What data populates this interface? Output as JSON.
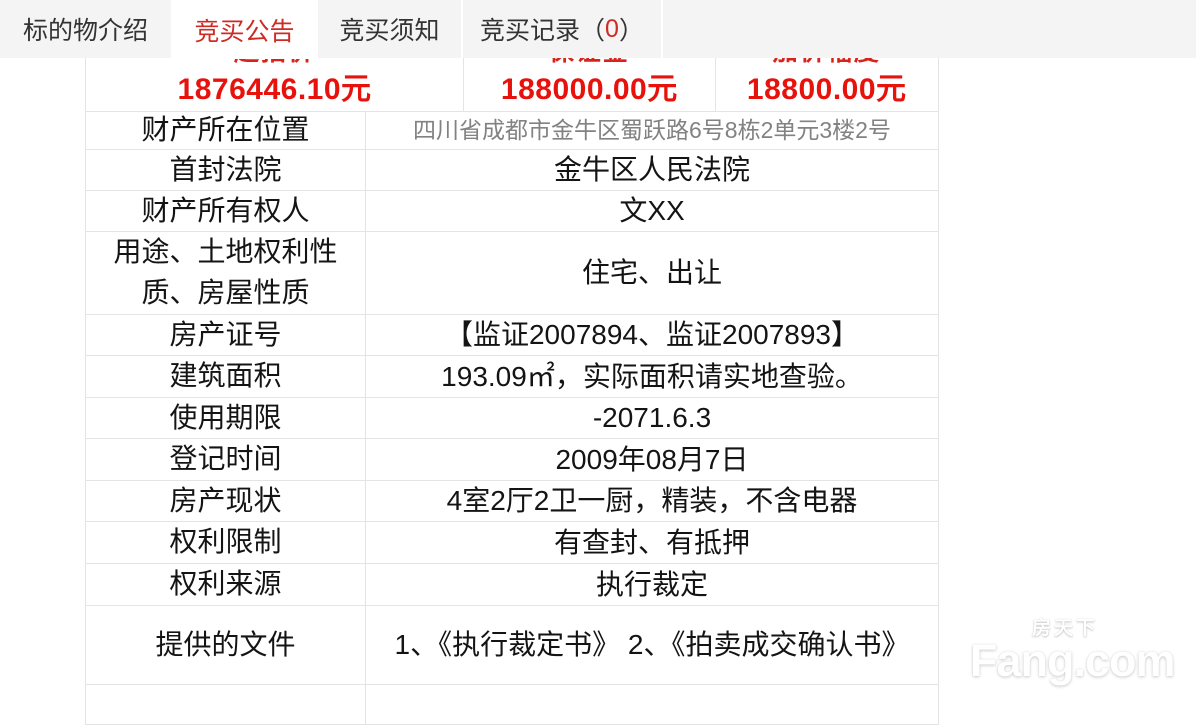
{
  "tabs": [
    {
      "label": "标的物介绍",
      "active": false
    },
    {
      "label": "竞买公告",
      "active": true
    },
    {
      "label": "竞买须知",
      "active": false
    },
    {
      "label": "竞买记录",
      "active": false,
      "count_prefix": "（",
      "count": "0",
      "count_suffix": "）"
    }
  ],
  "price_table": {
    "columns": [
      {
        "label": "起拍价",
        "value": "1876446.10元"
      },
      {
        "label": "保证金",
        "value": "188000.00元"
      },
      {
        "label": "加价幅度",
        "value": "18800.00元"
      }
    ]
  },
  "property_table": {
    "rows": [
      {
        "label": "财产所在位置",
        "value": "四川省成都市金牛区蜀跃路6号8栋2单元3楼2号",
        "muted": true
      },
      {
        "label": "首封法院",
        "value": "金牛区人民法院",
        "muted": false
      },
      {
        "label": "财产所有权人",
        "value": "文XX",
        "muted": false
      },
      {
        "label": "用途、土地权利性质、房屋性质",
        "value": "住宅、出让",
        "muted": false
      },
      {
        "label": "房产证号",
        "value": "【监证2007894、监证2007893】",
        "muted": false
      },
      {
        "label": "建筑面积",
        "value": "193.09㎡，实际面积请实地查验。",
        "muted": false
      },
      {
        "label": "使用期限",
        "value": "-2071.6.3",
        "muted": false
      },
      {
        "label": "登记时间",
        "value": "2009年08月7日",
        "muted": false
      },
      {
        "label": "房产现状",
        "value": "4室2厅2卫一厨，精装，不含电器",
        "muted": false
      },
      {
        "label": "权利限制",
        "value": "有查封、有抵押",
        "muted": false
      },
      {
        "label": "权利来源",
        "value": "执行裁定",
        "muted": false
      },
      {
        "label": "提供的文件",
        "value": "1、《执行裁定书》 2、《拍卖成交确认书》",
        "muted": false
      },
      {
        "label": "",
        "value": "",
        "muted": false
      }
    ]
  },
  "watermark": {
    "cn": "房天下",
    "en": "Fang.com"
  },
  "colors": {
    "tab_active_red": "#ce2b24",
    "price_red": "#e8120c",
    "tabbar_bg": "#f4f4f4",
    "border": "#e4e4e4",
    "muted_text": "#828282"
  }
}
